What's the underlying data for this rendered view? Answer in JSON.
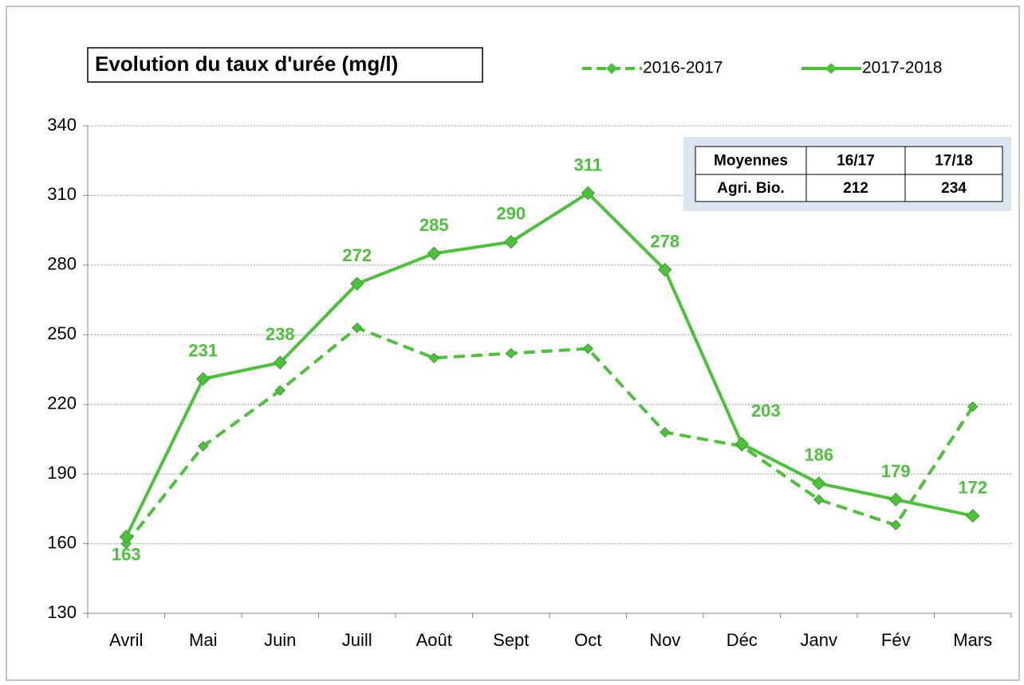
{
  "chart_data": {
    "type": "line",
    "title": "Evolution du taux d'urée (mg/l)",
    "categories": [
      "Avril",
      "Mai",
      "Juin",
      "Juill",
      "Août",
      "Sept",
      "Oct",
      "Nov",
      "Déc",
      "Janv",
      "Fév",
      "Mars"
    ],
    "series": [
      {
        "name": "2016-2017",
        "color": "#4cc23a",
        "line_style": "dashed",
        "values": [
          160,
          202,
          226,
          253,
          240,
          242,
          244,
          208,
          202,
          179,
          168,
          219
        ]
      },
      {
        "name": "2017-2018",
        "color": "#4cc23a",
        "line_style": "solid",
        "values": [
          163,
          231,
          238,
          272,
          285,
          290,
          311,
          278,
          203,
          186,
          179,
          172
        ],
        "show_value_labels": true
      }
    ],
    "ylim": [
      130,
      340
    ],
    "yticks": [
      130,
      160,
      190,
      220,
      250,
      280,
      310,
      340
    ],
    "grid": true,
    "table": {
      "header": [
        "Moyennes",
        "16/17",
        "17/18"
      ],
      "rows": [
        [
          "Agri. Bio.",
          212,
          234
        ]
      ]
    }
  }
}
